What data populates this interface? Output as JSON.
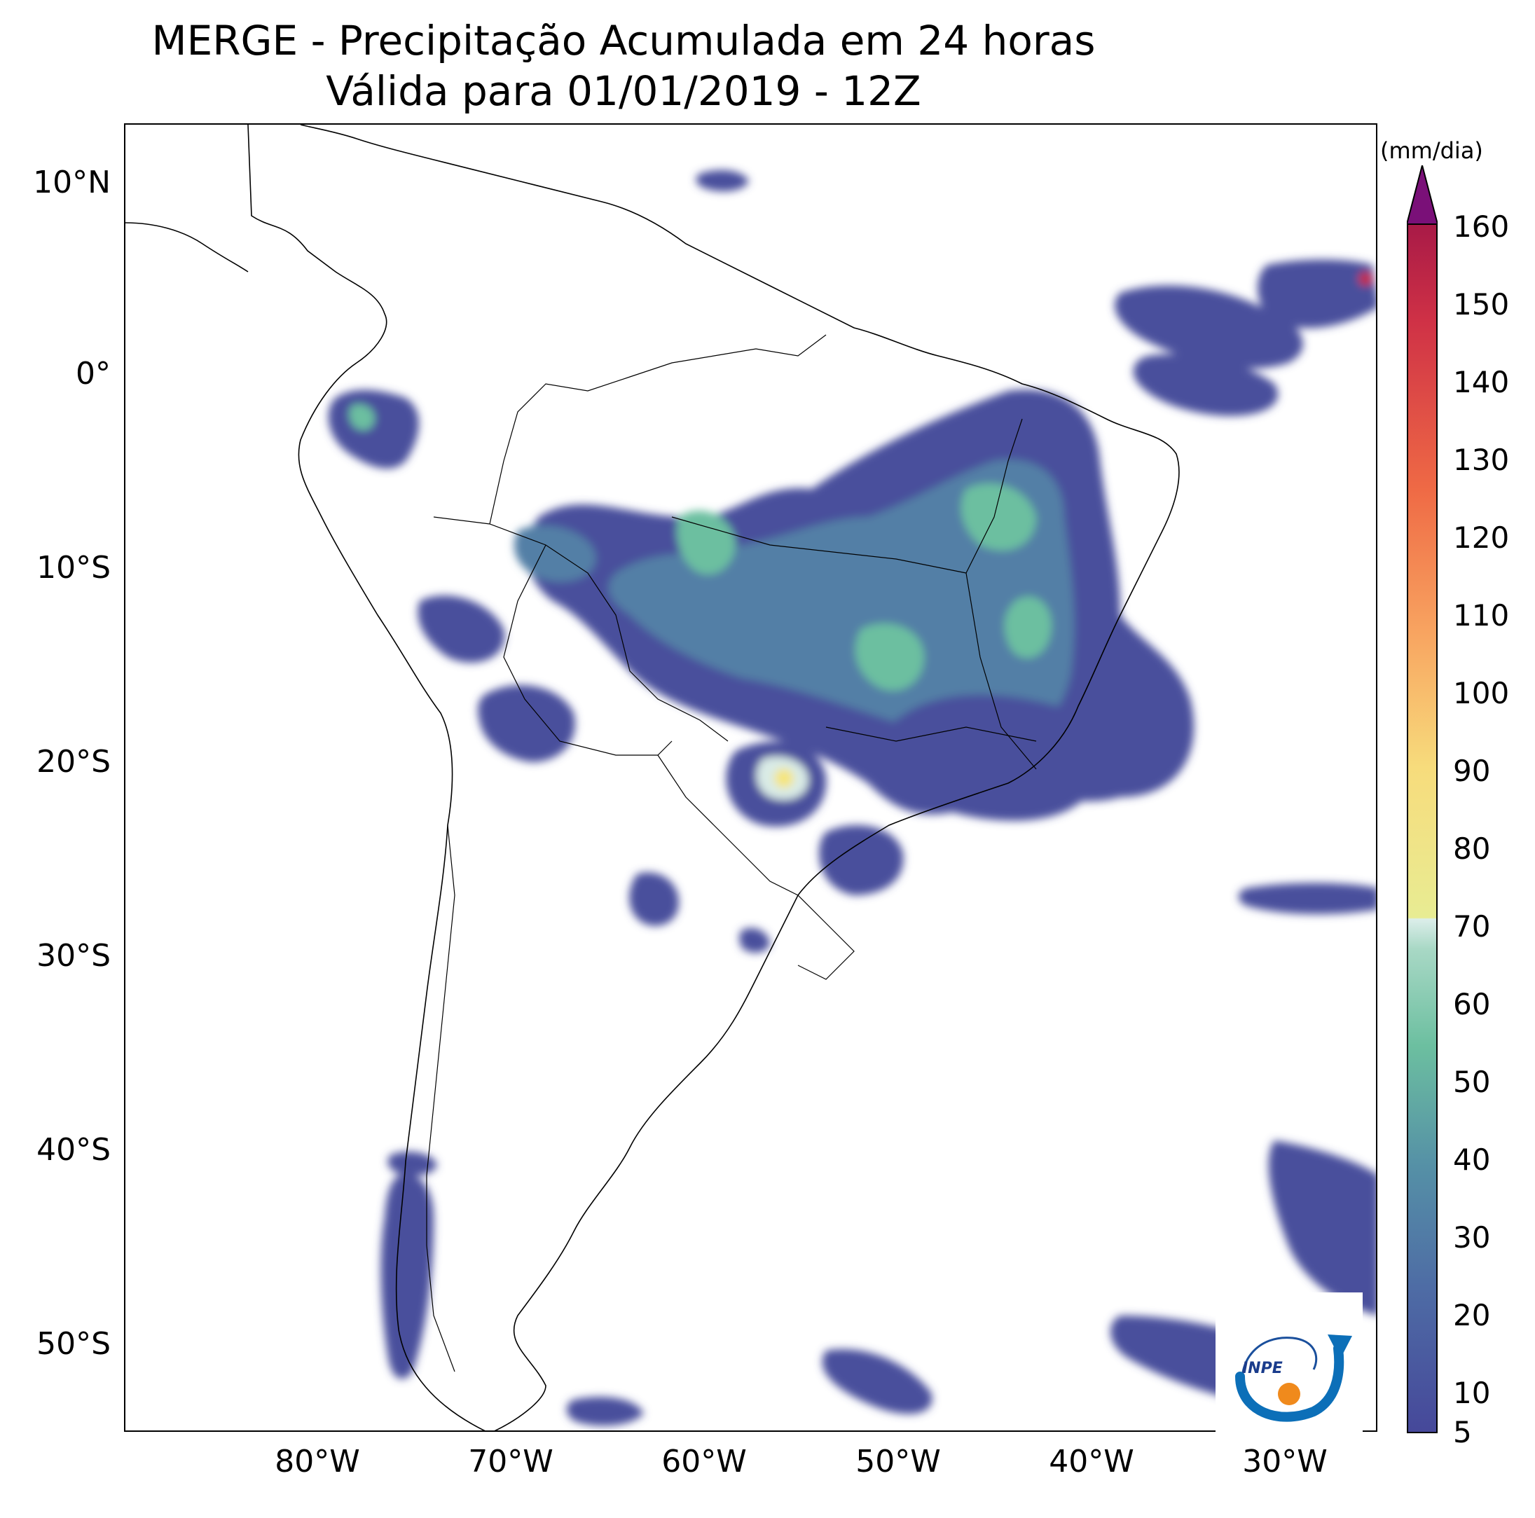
{
  "title_line1": "MERGE - Precipitação Acumulada em 24 horas",
  "title_line2": "Válida para 01/01/2019 - 12Z",
  "colorbar_unit": "(mm/dia)",
  "colorbar_ticks": [
    "5",
    "10",
    "20",
    "30",
    "40",
    "50",
    "60",
    "70",
    "80",
    "90",
    "100",
    "110",
    "120",
    "130",
    "140",
    "150",
    "160"
  ],
  "lat_ticks": [
    "10°N",
    "0°",
    "10°S",
    "20°S",
    "30°S",
    "40°S",
    "50°S"
  ],
  "lon_ticks": [
    "80°W",
    "70°W",
    "60°W",
    "50°W",
    "40°W",
    "30°W"
  ],
  "logo_text": "INPE",
  "colors": {
    "low": "#46489a",
    "mid_low": "#4e7aa3",
    "mid": "#6cbfa0",
    "pale": "#d9ebe6",
    "yellow": "#f5e57e",
    "orange": "#f58b4f",
    "red": "#c72a43",
    "extreme": "#7a1078"
  }
}
